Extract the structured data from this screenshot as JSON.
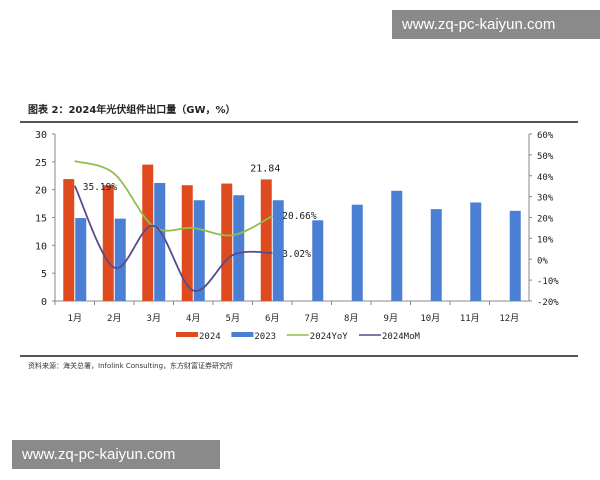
{
  "watermark": "www.zq-pc-kaiyun.com",
  "title": "图表 2：2024年光伏组件出口量（GW，%）",
  "source": "资料来源：海关总署，Infolink Consulting，东方财富证券研究所",
  "chart_data": {
    "type": "bar+line",
    "categories": [
      "1月",
      "2月",
      "3月",
      "4月",
      "5月",
      "6月",
      "7月",
      "8月",
      "9月",
      "10月",
      "11月",
      "12月"
    ],
    "y_left": {
      "range": [
        0,
        30
      ],
      "ticks": [
        0,
        5,
        10,
        15,
        20,
        25,
        30
      ]
    },
    "y_right": {
      "range": [
        -20,
        60
      ],
      "ticks": [
        "-20%",
        "-10%",
        "0%",
        "10%",
        "20%",
        "30%",
        "40%",
        "50%",
        "60%"
      ]
    },
    "series": [
      {
        "name": "2024",
        "type": "bar",
        "axis": "left",
        "color": "#e04a1f",
        "values": [
          21.9,
          20.8,
          24.5,
          20.8,
          21.1,
          21.84,
          null,
          null,
          null,
          null,
          null,
          null
        ]
      },
      {
        "name": "2023",
        "type": "bar",
        "axis": "left",
        "color": "#4a7fd4",
        "values": [
          14.9,
          14.8,
          21.2,
          18.1,
          19.0,
          18.1,
          14.5,
          17.3,
          19.8,
          16.5,
          17.7,
          16.2
        ]
      },
      {
        "name": "2024YoY",
        "type": "line",
        "axis": "right",
        "color": "#8fbf4a",
        "values": [
          47,
          41,
          15.6,
          15,
          11.5,
          20.66,
          null,
          null,
          null,
          null,
          null,
          null
        ]
      },
      {
        "name": "2024MoM",
        "type": "line",
        "axis": "right",
        "color": "#5a4a8a",
        "values": [
          35.19,
          -4,
          16,
          -15,
          2,
          3.02,
          null,
          null,
          null,
          null,
          null,
          null
        ]
      }
    ],
    "annotations": [
      "35.19%",
      "21.84",
      "20.66%",
      "3.02%"
    ],
    "legend": "bottom"
  }
}
